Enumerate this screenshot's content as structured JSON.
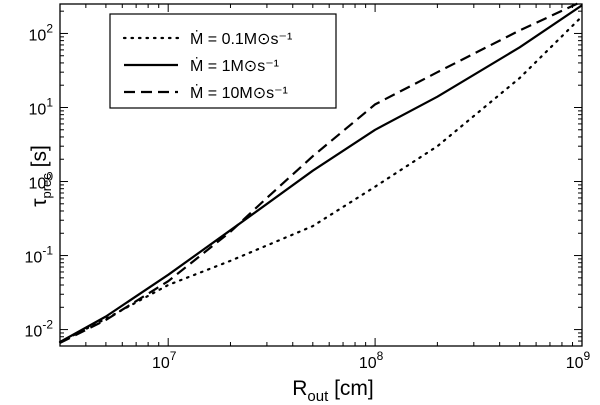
{
  "chart_data": {
    "type": "line",
    "xscale": "log",
    "yscale": "log",
    "xlim": [
      3000000,
      1000000000
    ],
    "ylim": [
      0.006,
      250
    ],
    "x_ticks": [
      {
        "value": 10000000,
        "base": "10",
        "exp": "7"
      },
      {
        "value": 100000000,
        "base": "10",
        "exp": "8"
      },
      {
        "value": 1000000000,
        "base": "10",
        "exp": "9"
      }
    ],
    "y_ticks": [
      {
        "value": 0.01,
        "base": "10",
        "exp": "-2"
      },
      {
        "value": 0.1,
        "base": "10",
        "exp": "-1"
      },
      {
        "value": 1,
        "base": "10",
        "exp": "0"
      },
      {
        "value": 10,
        "base": "10",
        "exp": "1"
      },
      {
        "value": 100,
        "base": "10",
        "exp": "2"
      }
    ],
    "xlabel": {
      "main": "R",
      "sub": "out",
      "unit": " [cm]"
    },
    "ylabel": {
      "main": "τ",
      "sub": "prec",
      "unit": " [s]"
    },
    "grid": false,
    "legend_position": "top-left",
    "series": [
      {
        "name": "Ṁ = 0.1M⊙s⁻¹",
        "style": "dotted",
        "x": [
          3000000,
          5000000,
          10000000,
          20000000,
          50000000,
          100000000,
          200000000,
          500000000,
          1000000000
        ],
        "y": [
          0.0068,
          0.014,
          0.04,
          0.085,
          0.25,
          0.85,
          3.0,
          25,
          170
        ]
      },
      {
        "name": "Ṁ = 1M⊙s⁻¹",
        "style": "solid",
        "x": [
          3000000,
          5000000,
          10000000,
          20000000,
          50000000,
          100000000,
          200000000,
          500000000,
          1000000000
        ],
        "y": [
          0.0068,
          0.015,
          0.055,
          0.22,
          1.4,
          5.0,
          14,
          65,
          240
        ]
      },
      {
        "name": "Ṁ = 10M⊙s⁻¹",
        "style": "dashed",
        "x": [
          3000000,
          5000000,
          10000000,
          20000000,
          30000000,
          50000000,
          100000000,
          200000000,
          500000000,
          1000000000
        ],
        "y": [
          0.0066,
          0.0135,
          0.045,
          0.21,
          0.6,
          2.2,
          11,
          30,
          110,
          270
        ]
      }
    ]
  }
}
